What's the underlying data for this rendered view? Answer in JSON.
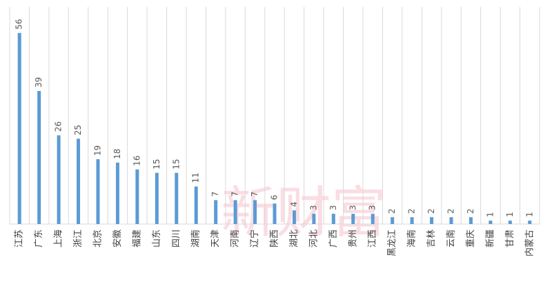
{
  "chart_data": {
    "type": "bar",
    "categories": [
      "江苏",
      "广东",
      "上海",
      "浙江",
      "北京",
      "安徽",
      "福建",
      "山东",
      "四川",
      "湖南",
      "天津",
      "河南",
      "辽宁",
      "陕西",
      "湖北",
      "河北",
      "广西",
      "贵州",
      "江西",
      "黑龙江",
      "海南",
      "吉林",
      "云南",
      "重庆",
      "新疆",
      "甘肃",
      "内蒙古"
    ],
    "values": [
      56,
      39,
      26,
      25,
      19,
      18,
      16,
      15,
      15,
      11,
      7,
      7,
      7,
      6,
      4,
      3,
      3,
      3,
      3,
      2,
      2,
      2,
      2,
      2,
      1,
      1,
      1
    ],
    "color": "#5b9bd5",
    "grid": true,
    "watermark": "新财富"
  }
}
